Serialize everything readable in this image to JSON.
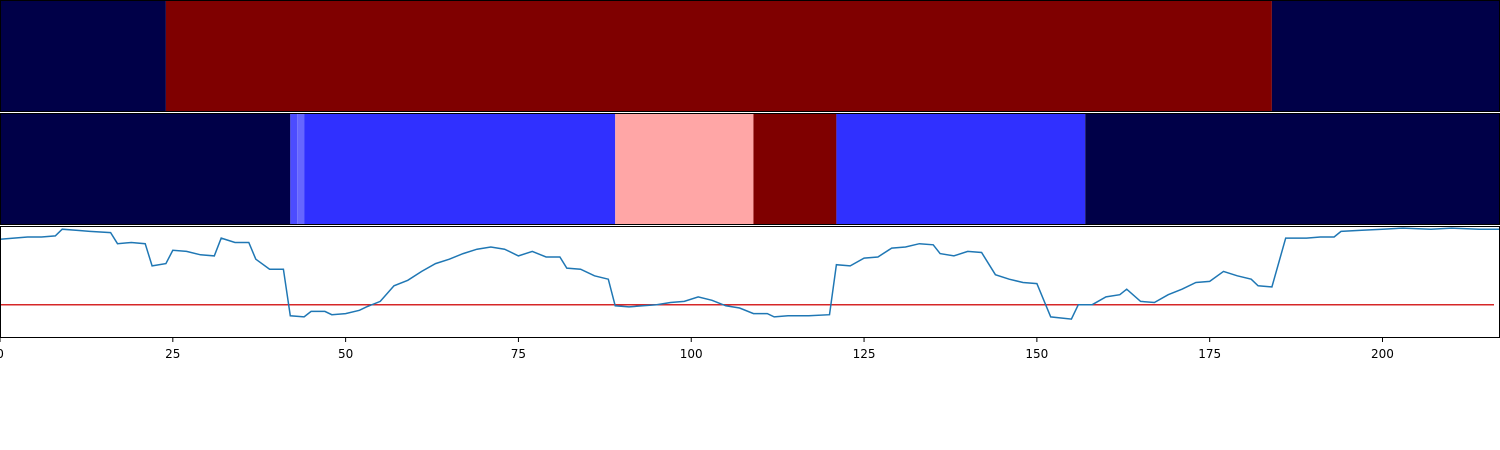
{
  "chart_data": [
    {
      "type": "heatmap",
      "segments": [
        {
          "start": 0,
          "end": 24,
          "color": "#000048"
        },
        {
          "start": 24,
          "end": 184,
          "color": "#7f0000"
        },
        {
          "start": 184,
          "end": 217,
          "color": "#000048"
        }
      ]
    },
    {
      "type": "heatmap",
      "segments": [
        {
          "start": 0,
          "end": 42,
          "color": "#000048"
        },
        {
          "start": 42,
          "end": 43,
          "color": "#4c4cff"
        },
        {
          "start": 43,
          "end": 44,
          "color": "#6666ff"
        },
        {
          "start": 44,
          "end": 89,
          "color": "#3030ff"
        },
        {
          "start": 89,
          "end": 109,
          "color": "#ffa6a6"
        },
        {
          "start": 109,
          "end": 121,
          "color": "#7f0000"
        },
        {
          "start": 121,
          "end": 157,
          "color": "#3030ff"
        },
        {
          "start": 157,
          "end": 217,
          "color": "#000048"
        }
      ]
    },
    {
      "type": "line",
      "xlim": [
        0,
        217
      ],
      "ylim": [
        0,
        1
      ],
      "x_ticks": [
        0,
        25,
        50,
        75,
        100,
        125,
        150,
        175,
        200
      ],
      "threshold": 0.3,
      "threshold_color": "#d62728",
      "line_color": "#1f77b4",
      "series": [
        {
          "points": [
            [
              0,
              0.89
            ],
            [
              2,
              0.9
            ],
            [
              4,
              0.91
            ],
            [
              6,
              0.91
            ],
            [
              8,
              0.92
            ],
            [
              9,
              0.98
            ],
            [
              11,
              0.97
            ],
            [
              13,
              0.96
            ],
            [
              16,
              0.95
            ],
            [
              17,
              0.85
            ],
            [
              19,
              0.86
            ],
            [
              21,
              0.85
            ],
            [
              22,
              0.65
            ],
            [
              24,
              0.67
            ],
            [
              25,
              0.79
            ],
            [
              27,
              0.78
            ],
            [
              29,
              0.75
            ],
            [
              31,
              0.74
            ],
            [
              32,
              0.9
            ],
            [
              34,
              0.86
            ],
            [
              36,
              0.86
            ],
            [
              37,
              0.71
            ],
            [
              39,
              0.62
            ],
            [
              41,
              0.62
            ],
            [
              42,
              0.2
            ],
            [
              44,
              0.19
            ],
            [
              45,
              0.24
            ],
            [
              47,
              0.24
            ],
            [
              48,
              0.21
            ],
            [
              50,
              0.22
            ],
            [
              52,
              0.25
            ],
            [
              53,
              0.28
            ],
            [
              55,
              0.33
            ],
            [
              57,
              0.47
            ],
            [
              59,
              0.52
            ],
            [
              61,
              0.6
            ],
            [
              63,
              0.67
            ],
            [
              65,
              0.71
            ],
            [
              67,
              0.76
            ],
            [
              69,
              0.8
            ],
            [
              71,
              0.82
            ],
            [
              73,
              0.8
            ],
            [
              75,
              0.74
            ],
            [
              77,
              0.78
            ],
            [
              79,
              0.73
            ],
            [
              81,
              0.73
            ],
            [
              82,
              0.63
            ],
            [
              84,
              0.62
            ],
            [
              86,
              0.56
            ],
            [
              88,
              0.53
            ],
            [
              89,
              0.29
            ],
            [
              91,
              0.28
            ],
            [
              93,
              0.29
            ],
            [
              95,
              0.3
            ],
            [
              97,
              0.32
            ],
            [
              99,
              0.33
            ],
            [
              101,
              0.37
            ],
            [
              103,
              0.34
            ],
            [
              105,
              0.29
            ],
            [
              107,
              0.27
            ],
            [
              109,
              0.22
            ],
            [
              111,
              0.22
            ],
            [
              112,
              0.19
            ],
            [
              114,
              0.2
            ],
            [
              117,
              0.2
            ],
            [
              120,
              0.21
            ],
            [
              121,
              0.66
            ],
            [
              123,
              0.65
            ],
            [
              125,
              0.72
            ],
            [
              127,
              0.73
            ],
            [
              129,
              0.81
            ],
            [
              131,
              0.82
            ],
            [
              133,
              0.85
            ],
            [
              135,
              0.84
            ],
            [
              136,
              0.76
            ],
            [
              138,
              0.74
            ],
            [
              140,
              0.78
            ],
            [
              142,
              0.77
            ],
            [
              144,
              0.57
            ],
            [
              146,
              0.53
            ],
            [
              148,
              0.5
            ],
            [
              150,
              0.49
            ],
            [
              152,
              0.19
            ],
            [
              155,
              0.17
            ],
            [
              156,
              0.3
            ],
            [
              158,
              0.3
            ],
            [
              160,
              0.37
            ],
            [
              162,
              0.39
            ],
            [
              163,
              0.44
            ],
            [
              165,
              0.33
            ],
            [
              167,
              0.32
            ],
            [
              169,
              0.39
            ],
            [
              171,
              0.44
            ],
            [
              173,
              0.5
            ],
            [
              175,
              0.51
            ],
            [
              177,
              0.6
            ],
            [
              179,
              0.56
            ],
            [
              181,
              0.53
            ],
            [
              182,
              0.47
            ],
            [
              184,
              0.46
            ],
            [
              186,
              0.9
            ],
            [
              189,
              0.9
            ],
            [
              191,
              0.91
            ],
            [
              193,
              0.91
            ],
            [
              194,
              0.96
            ],
            [
              197,
              0.97
            ],
            [
              200,
              0.98
            ],
            [
              203,
              0.99
            ],
            [
              207,
              0.98
            ],
            [
              210,
              0.99
            ],
            [
              214,
              0.98
            ],
            [
              217,
              0.98
            ]
          ]
        }
      ]
    }
  ]
}
